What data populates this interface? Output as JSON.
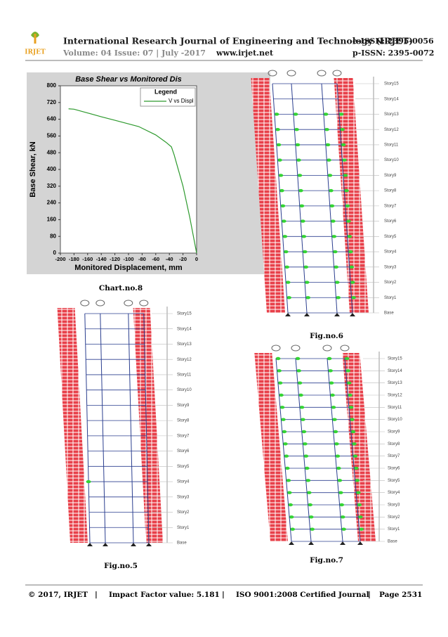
{
  "header": {
    "logo": "IRJET",
    "journal": "International Research Journal of Engineering and Technology (IRJET)",
    "eissn": "e-ISSN: 2395-0056",
    "issue": "Volume: 04 Issue: 07 | July -2017",
    "site": "www.irjet.net",
    "pissn": "p-ISSN: 2395-0072"
  },
  "chart": {
    "type": "line",
    "title": "Base Shear vs Monitored Dis",
    "legend_title": "Legend",
    "xlabel": "Monitored Displacement, mm",
    "ylabel": "Base Shear, kN",
    "x": [
      -188,
      -180,
      -160,
      -140,
      -120,
      -100,
      -85,
      -60,
      -45,
      -37,
      -33,
      -20,
      -10,
      0
    ],
    "series": [
      {
        "name": "V vs Displ",
        "color": "#2e9a2e",
        "values": [
          690,
          688,
          670,
          652,
          635,
          618,
          605,
          565,
          530,
          508,
          470,
          320,
          170,
          0
        ]
      }
    ],
    "xlim": [
      -200,
      0
    ],
    "ylim": [
      0,
      800
    ],
    "xticks": [
      -200,
      -180,
      -160,
      -140,
      -120,
      -100,
      -80,
      -60,
      -40,
      -20,
      0
    ],
    "yticks": [
      0,
      80,
      160,
      240,
      320,
      400,
      480,
      560,
      640,
      720,
      800
    ]
  },
  "stories": [
    "Story15",
    "Story14",
    "Story13",
    "Story12",
    "Story11",
    "Story10",
    "Story9",
    "Story8",
    "Story7",
    "Story6",
    "Story5",
    "Story4",
    "Story3",
    "Story2",
    "Story1",
    "Base"
  ],
  "captions": {
    "chart": "Chart.no.8",
    "fig6": "Fig.no.6",
    "fig5": "Fig.no.5",
    "fig7": "Fig.no.7"
  },
  "footer": {
    "copyright": "© 2017, IRJET",
    "sep": "|",
    "impact": "Impact Factor value: 5.181",
    "iso": "ISO 9001:2008 Certified Journal",
    "page": "Page 2531"
  }
}
